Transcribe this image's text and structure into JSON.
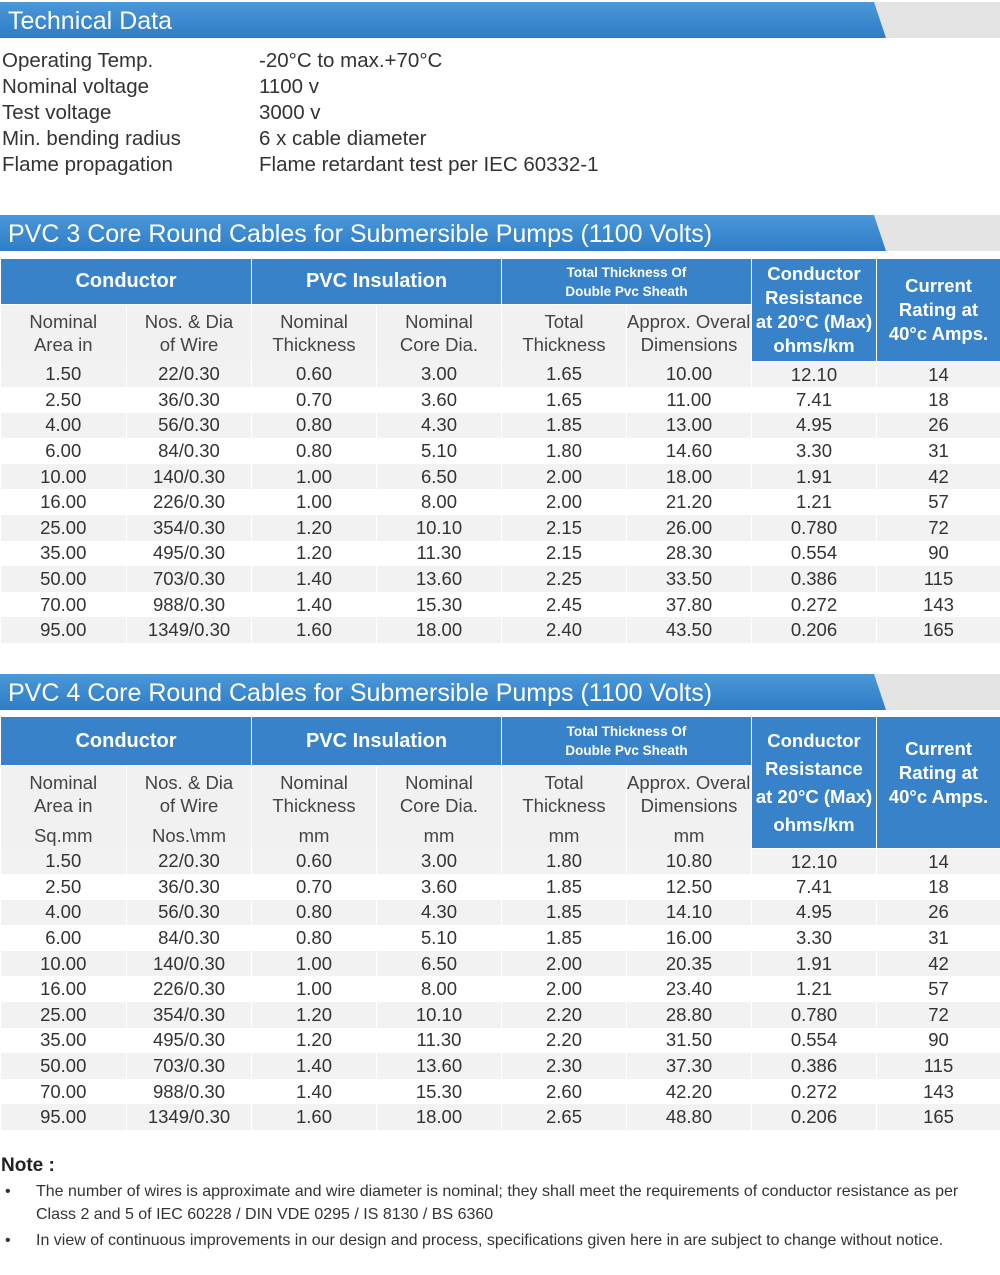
{
  "technical": {
    "title": "Technical Data",
    "rows": [
      {
        "label": "Operating Temp.",
        "value": "-20°C to max.+70°C"
      },
      {
        "label": "Nominal voltage",
        "value": "1100 v"
      },
      {
        "label": "Test voltage",
        "value": "3000 v"
      },
      {
        "label": "Min. bending radius",
        "value": "6 x cable diameter"
      },
      {
        "label": "Flame propagation",
        "value": "Flame retardant test per IEC 60332-1"
      }
    ]
  },
  "table1": {
    "title": "PVC 3 Core Round Cables for Submersible Pumps (1100 Volts)",
    "groups": {
      "conductor": "Conductor",
      "insulation": "PVC Insulation",
      "sheath_line1": "Total Thickness Of",
      "sheath_line2": "Double Pvc Sheath",
      "resistance_lines": [
        "Conductor",
        "Resistance",
        "at 20°C (Max)",
        "ohms/km"
      ],
      "current_lines": [
        "Current",
        "Rating at",
        "40°c Amps."
      ]
    },
    "subheaders": [
      [
        "Nominal",
        "Area in"
      ],
      [
        "Nos. & Dia",
        "of Wire"
      ],
      [
        "Nominal",
        "Thickness"
      ],
      [
        "Nominal",
        "Core Dia."
      ],
      [
        "Total",
        "Thickness"
      ],
      [
        "Approx. Overall",
        "Dimensions"
      ]
    ],
    "rows": [
      [
        "1.50",
        "22/0.30",
        "0.60",
        "3.00",
        "1.65",
        "10.00",
        "12.10",
        "14"
      ],
      [
        "2.50",
        "36/0.30",
        "0.70",
        "3.60",
        "1.65",
        "11.00",
        "7.41",
        "18"
      ],
      [
        "4.00",
        "56/0.30",
        "0.80",
        "4.30",
        "1.85",
        "13.00",
        "4.95",
        "26"
      ],
      [
        "6.00",
        "84/0.30",
        "0.80",
        "5.10",
        "1.80",
        "14.60",
        "3.30",
        "31"
      ],
      [
        "10.00",
        "140/0.30",
        "1.00",
        "6.50",
        "2.00",
        "18.00",
        "1.91",
        "42"
      ],
      [
        "16.00",
        "226/0.30",
        "1.00",
        "8.00",
        "2.00",
        "21.20",
        "1.21",
        "57"
      ],
      [
        "25.00",
        "354/0.30",
        "1.20",
        "10.10",
        "2.15",
        "26.00",
        "0.780",
        "72"
      ],
      [
        "35.00",
        "495/0.30",
        "1.20",
        "11.30",
        "2.15",
        "28.30",
        "0.554",
        "90"
      ],
      [
        "50.00",
        "703/0.30",
        "1.40",
        "13.60",
        "2.25",
        "33.50",
        "0.386",
        "115"
      ],
      [
        "70.00",
        "988/0.30",
        "1.40",
        "15.30",
        "2.45",
        "37.80",
        "0.272",
        "143"
      ],
      [
        "95.00",
        "1349/0.30",
        "1.60",
        "18.00",
        "2.40",
        "43.50",
        "0.206",
        "165"
      ]
    ]
  },
  "table2": {
    "title": "PVC 4 Core Round Cables for Submersible Pumps (1100 Volts)",
    "groups": {
      "conductor": "Conductor",
      "insulation": "PVC Insulation",
      "sheath_line1": "Total Thickness Of",
      "sheath_line2": "Double Pvc Sheath",
      "resistance_lines": [
        "Conductor",
        "Resistance",
        "at 20°C (Max)",
        "ohms/km"
      ],
      "current_lines": [
        "Current",
        "Rating at",
        "40°c Amps."
      ]
    },
    "subheaders": [
      [
        "Nominal",
        "Area in"
      ],
      [
        "Nos. & Dia",
        "of Wire"
      ],
      [
        "Nominal",
        "Thickness"
      ],
      [
        "Nominal",
        "Core Dia."
      ],
      [
        "Total",
        "Thickness"
      ],
      [
        "Approx. Overall",
        "Dimensions"
      ]
    ],
    "units": [
      "Sq.mm",
      "Nos.\\mm",
      "mm",
      "mm",
      "mm",
      "mm"
    ],
    "rows": [
      [
        "1.50",
        "22/0.30",
        "0.60",
        "3.00",
        "1.80",
        "10.80",
        "12.10",
        "14"
      ],
      [
        "2.50",
        "36/0.30",
        "0.70",
        "3.60",
        "1.85",
        "12.50",
        "7.41",
        "18"
      ],
      [
        "4.00",
        "56/0.30",
        "0.80",
        "4.30",
        "1.85",
        "14.10",
        "4.95",
        "26"
      ],
      [
        "6.00",
        "84/0.30",
        "0.80",
        "5.10",
        "1.85",
        "16.00",
        "3.30",
        "31"
      ],
      [
        "10.00",
        "140/0.30",
        "1.00",
        "6.50",
        "2.00",
        "20.35",
        "1.91",
        "42"
      ],
      [
        "16.00",
        "226/0.30",
        "1.00",
        "8.00",
        "2.00",
        "23.40",
        "1.21",
        "57"
      ],
      [
        "25.00",
        "354/0.30",
        "1.20",
        "10.10",
        "2.20",
        "28.80",
        "0.780",
        "72"
      ],
      [
        "35.00",
        "495/0.30",
        "1.20",
        "11.30",
        "2.20",
        "31.50",
        "0.554",
        "90"
      ],
      [
        "50.00",
        "703/0.30",
        "1.40",
        "13.60",
        "2.30",
        "37.30",
        "0.386",
        "115"
      ],
      [
        "70.00",
        "988/0.30",
        "1.40",
        "15.30",
        "2.60",
        "42.20",
        "0.272",
        "143"
      ],
      [
        "95.00",
        "1349/0.30",
        "1.60",
        "18.00",
        "2.65",
        "48.80",
        "0.206",
        "165"
      ]
    ]
  },
  "notes": {
    "title": "Note :",
    "bullet": "•",
    "items": [
      "The number of wires is approximate and wire diameter is nominal; they shall meet the requirements of conductor resistance as per Class 2 and 5 of IEC 60228 / DIN VDE 0295 / IS 8130 / BS 6360",
      "In view of continuous improvements in our design and process, specifications given here in are subject to change without notice."
    ]
  },
  "colors": {
    "header_blue": "#3882c9",
    "title_bar_blue": "#3b88cf",
    "stripe_gray": "#f2f2f2"
  }
}
